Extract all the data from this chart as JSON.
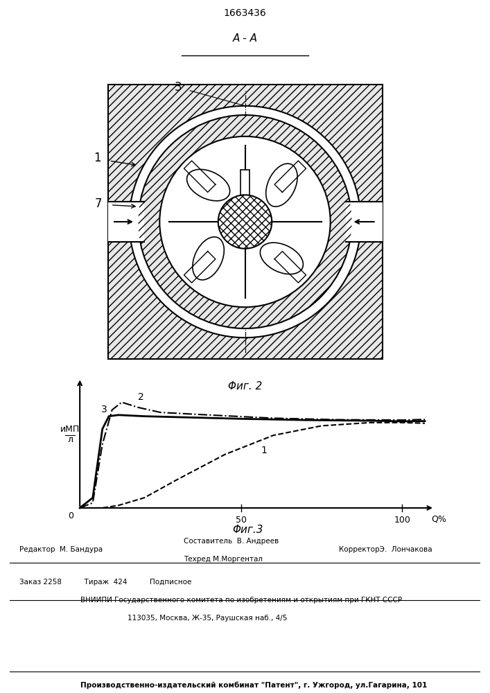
{
  "patent_number": "1663436",
  "section_label": "А - А",
  "fig2_label": "Φиг. 2",
  "fig3_label": "Φиг.3",
  "bg_color": "#ffffff",
  "editor_line": "Редактор  М. Бандура",
  "composer_line": "Составитель  В. Андреев",
  "techred_line": "Техред М.Моргентал",
  "corrector_line": "КорректорЭ.  Лончакова",
  "order_line": "Заказ 2258          Тираж  424          Подписное",
  "vniip_line1": "ВНИИПИ Государственного комитета по изобретениям и открытиям при ГКНТ СССР",
  "vniip_line2": "113035, Москва, Ж-35, Раушская наб., 4/5",
  "patent_line": "Производственно-издательский комбинат \"Патент\", г. Ужгород, ул.Гагарина, 101"
}
